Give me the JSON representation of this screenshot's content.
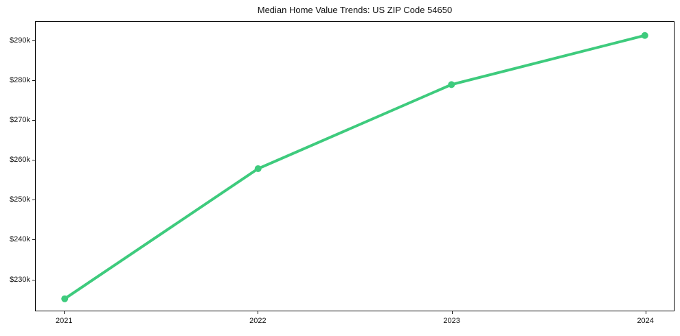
{
  "chart_data": {
    "type": "line",
    "title": "Median Home Value Trends: US ZIP Code 54650",
    "xlabel": "",
    "ylabel": "",
    "categories": [
      "2021",
      "2022",
      "2023",
      "2024"
    ],
    "x": [
      2021,
      2022,
      2023,
      2024
    ],
    "series": [
      {
        "name": "Median Home Value",
        "values": [
          225000,
          257800,
          279000,
          291400
        ]
      }
    ],
    "y_ticks": [
      230000,
      240000,
      250000,
      260000,
      270000,
      280000,
      290000
    ],
    "y_tick_labels": [
      "$230k",
      "$240k",
      "$250k",
      "$260k",
      "$270k",
      "$280k",
      "$290k"
    ],
    "xlim": [
      2020.85,
      2024.15
    ],
    "ylim": [
      222000,
      294800
    ],
    "grid": false,
    "legend_position": "none",
    "line_color": "#3ecb7d",
    "marker": "circle",
    "marker_color": "#3ecb7d",
    "line_width": 4,
    "marker_radius": 5,
    "background_color": "#ffffff",
    "axis_color": "#000000",
    "text_color": "#111111"
  }
}
